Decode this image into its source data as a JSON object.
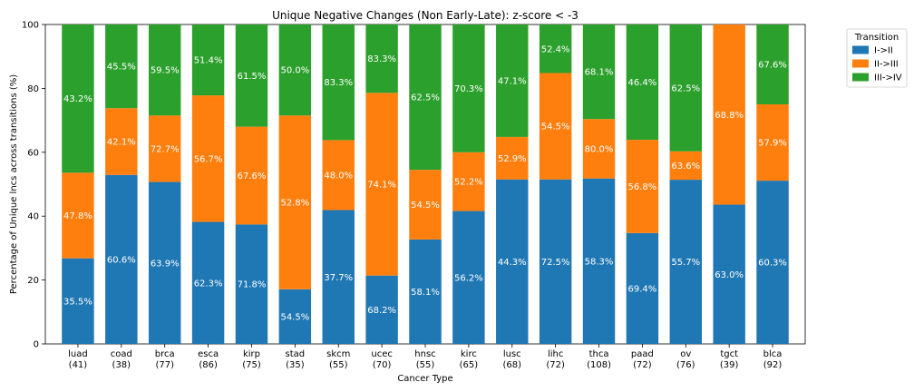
{
  "chart_data": {
    "type": "bar",
    "stacked": true,
    "title": "Unique Negative Changes (Non Early-Late): z-score < -3",
    "xlabel": "Cancer Type",
    "ylabel": "Percentage of Unique lncs across transitions (%)",
    "ylim": [
      0,
      100
    ],
    "yticks": [
      "0",
      "20",
      "40",
      "60",
      "80",
      "100"
    ],
    "categories": [
      "luad",
      "coad",
      "brca",
      "esca",
      "kirp",
      "stad",
      "skcm",
      "ucec",
      "hnsc",
      "kirc",
      "lusc",
      "lihc",
      "thca",
      "paad",
      "ov",
      "tgct",
      "blca"
    ],
    "category_counts": [
      "(41)",
      "(38)",
      "(77)",
      "(86)",
      "(75)",
      "(35)",
      "(55)",
      "(70)",
      "(55)",
      "(65)",
      "(68)",
      "(72)",
      "(108)",
      "(72)",
      "(76)",
      "(39)",
      "(92)"
    ],
    "legend_title": "Transition",
    "legend_position": "outside-top-right",
    "series": [
      {
        "name": "I->II",
        "color": "#1f77b4",
        "values": [
          26.8,
          52.9,
          50.7,
          38.2,
          37.4,
          17.1,
          41.9,
          21.4,
          32.7,
          41.6,
          51.5,
          51.5,
          51.8,
          34.7,
          51.4,
          43.6,
          51.1
        ],
        "labels": [
          "35.5%",
          "60.6%",
          "63.9%",
          "62.3%",
          "71.8%",
          "54.5%",
          "37.7%",
          "68.2%",
          "58.1%",
          "56.2%",
          "44.3%",
          "72.5%",
          "58.3%",
          "69.4%",
          "55.7%",
          "63.0%",
          "60.3%"
        ]
      },
      {
        "name": "II->III",
        "color": "#ff7f0e",
        "values": [
          26.8,
          20.9,
          20.8,
          39.6,
          30.6,
          54.4,
          21.9,
          57.2,
          21.8,
          18.4,
          13.3,
          33.3,
          18.6,
          29.2,
          8.9,
          56.4,
          23.9
        ],
        "labels": [
          "47.8%",
          "42.1%",
          "72.7%",
          "56.7%",
          "67.6%",
          "52.8%",
          "48.0%",
          "74.1%",
          "54.5%",
          "52.2%",
          "52.9%",
          "54.5%",
          "80.0%",
          "56.8%",
          "63.6%",
          "68.8%",
          "57.9%"
        ]
      },
      {
        "name": "III->IV",
        "color": "#2ca02c",
        "values": [
          46.4,
          26.2,
          28.5,
          22.2,
          32.0,
          28.5,
          36.2,
          21.4,
          45.5,
          40.0,
          35.2,
          15.2,
          29.6,
          36.1,
          39.7,
          0.0,
          25.0
        ],
        "labels": [
          "43.2%",
          "45.5%",
          "59.5%",
          "51.4%",
          "61.5%",
          "50.0%",
          "83.3%",
          "83.3%",
          "62.5%",
          "70.3%",
          "47.1%",
          "52.4%",
          "68.1%",
          "46.4%",
          "62.5%",
          "",
          "67.6%"
        ]
      }
    ]
  }
}
